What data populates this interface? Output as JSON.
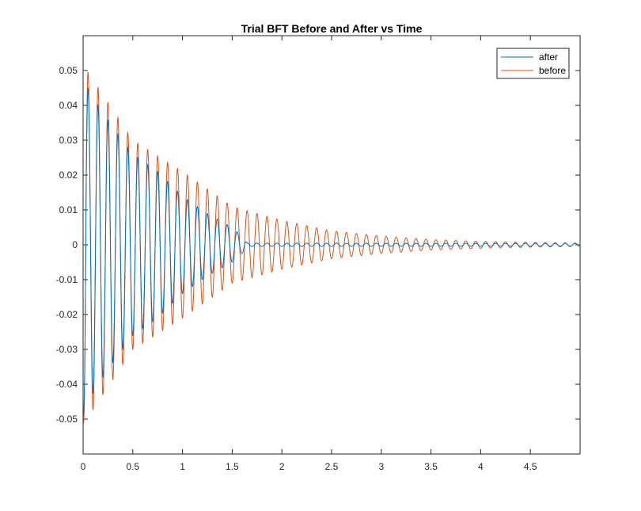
{
  "chart_data": {
    "type": "line",
    "title": "Trial BFT Before and After vs Time",
    "xlabel": "",
    "ylabel": "",
    "xlim": [
      0,
      5
    ],
    "ylim": [
      -0.06,
      0.06
    ],
    "x_ticks": [
      0,
      0.5,
      1,
      1.5,
      2,
      2.5,
      3,
      3.5,
      4,
      4.5
    ],
    "x_tick_labels": [
      "0",
      "0.5",
      "1",
      "1.5",
      "2",
      "2.5",
      "3",
      "3.5",
      "4",
      "4.5"
    ],
    "y_ticks": [
      -0.05,
      -0.04,
      -0.03,
      -0.02,
      -0.01,
      0,
      0.01,
      0.02,
      0.03,
      0.04,
      0.05
    ],
    "y_tick_labels": [
      "-0.05",
      "-0.04",
      "-0.03",
      "-0.02",
      "-0.01",
      "0",
      "0.01",
      "0.02",
      "0.03",
      "0.04",
      "0.05"
    ],
    "grid": false,
    "legend_position": "top-right",
    "series": [
      {
        "name": "after",
        "color": "#0072bd",
        "envelope": {
          "description_points_x": [
            0.05,
            0.24,
            0.5,
            0.75,
            1.0,
            1.25,
            1.5,
            1.62,
            1.65,
            5.0
          ],
          "amplitude_y": [
            0.045,
            0.036,
            0.026,
            0.021,
            0.014,
            0.009,
            0.005,
            0.002,
            0.0005,
            0.0004
          ]
        },
        "frequency_hz": 10.0,
        "start_value": -0.05
      },
      {
        "name": "before",
        "color": "#d95319",
        "envelope": {
          "description_points_x": [
            0.04,
            0.5,
            1.0,
            1.5,
            2.0,
            2.5,
            3.0,
            3.5,
            4.0,
            4.5,
            5.0
          ],
          "amplitude_y": [
            0.05,
            0.03,
            0.021,
            0.011,
            0.007,
            0.004,
            0.0025,
            0.0015,
            0.001,
            0.0007,
            0.0005
          ]
        },
        "frequency_hz": 10.0,
        "start_value": -0.052
      }
    ]
  }
}
